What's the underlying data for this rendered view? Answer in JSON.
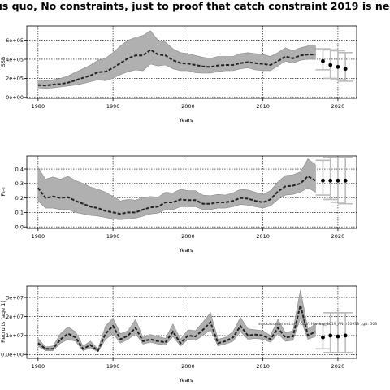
{
  "title": "tus quo, No constraints, just to proof that catch constraint 2019 is nee",
  "watermark": "stockassessment.org, Conf: Herring_2019_AN, r10938 , git: 503",
  "colors": {
    "band": "#b0b0b0",
    "line": "#222222",
    "grid": "#000000",
    "error_bar": "#bbbbbb",
    "point": "#000000"
  },
  "chart_data": [
    {
      "type": "area",
      "panel": "ssb",
      "xlabel": "Years",
      "ylabel": "SSB",
      "xlim": [
        1978.5,
        2022.5
      ],
      "ylim": [
        -10000,
        750000
      ],
      "xticks": [
        1980,
        1990,
        2000,
        2010,
        2020
      ],
      "yticks": [
        0,
        200000,
        400000,
        600000
      ],
      "ytick_labels": [
        "0e+00",
        "2e+05",
        "4e+05",
        "6e+05"
      ],
      "grid": true,
      "x": [
        1980,
        1981,
        1982,
        1983,
        1984,
        1985,
        1986,
        1987,
        1988,
        1989,
        1990,
        1991,
        1992,
        1993,
        1994,
        1995,
        1996,
        1997,
        1998,
        1999,
        2000,
        2001,
        2002,
        2003,
        2004,
        2005,
        2006,
        2007,
        2008,
        2009,
        2010,
        2011,
        2012,
        2013,
        2014,
        2015,
        2016,
        2017
      ],
      "estimate": [
        130000,
        125000,
        135000,
        140000,
        155000,
        180000,
        205000,
        230000,
        265000,
        270000,
        310000,
        360000,
        410000,
        440000,
        440000,
        500000,
        450000,
        440000,
        390000,
        360000,
        355000,
        340000,
        325000,
        320000,
        335000,
        340000,
        340000,
        360000,
        370000,
        360000,
        350000,
        340000,
        380000,
        430000,
        410000,
        440000,
        450000,
        450000
      ],
      "lower": [
        100000,
        95000,
        100000,
        110000,
        120000,
        130000,
        145000,
        165000,
        185000,
        175000,
        200000,
        240000,
        270000,
        290000,
        280000,
        350000,
        330000,
        340000,
        300000,
        280000,
        280000,
        260000,
        255000,
        255000,
        270000,
        280000,
        280000,
        300000,
        310000,
        290000,
        280000,
        280000,
        330000,
        380000,
        360000,
        390000,
        400000,
        400000
      ],
      "upper": [
        170000,
        175000,
        185000,
        200000,
        225000,
        265000,
        300000,
        340000,
        390000,
        410000,
        470000,
        540000,
        600000,
        630000,
        650000,
        700000,
        600000,
        580000,
        510000,
        470000,
        460000,
        440000,
        420000,
        410000,
        430000,
        430000,
        430000,
        460000,
        470000,
        460000,
        450000,
        430000,
        470000,
        520000,
        490000,
        520000,
        540000,
        540000
      ],
      "forecast": [
        {
          "x": 2018,
          "value": 380000,
          "lower": 290000,
          "upper": 510000
        },
        {
          "x": 2019,
          "value": 340000,
          "lower": 200000,
          "upper": 500000
        },
        {
          "x": 2020,
          "value": 320000,
          "lower": 185000,
          "upper": 490000
        },
        {
          "x": 2021,
          "value": 300000,
          "lower": 170000,
          "upper": 470000
        }
      ]
    },
    {
      "type": "area",
      "panel": "fbar",
      "xlabel": "Years",
      "ylabel": "F₃‐₆",
      "xlim": [
        1978.5,
        2022.5
      ],
      "ylim": [
        -0.01,
        0.49
      ],
      "xticks": [
        1980,
        1990,
        2000,
        2010,
        2020
      ],
      "yticks": [
        0,
        0.1,
        0.2,
        0.3,
        0.4
      ],
      "ytick_labels": [
        "0.0",
        "0.1",
        "0.2",
        "0.3",
        "0.4"
      ],
      "grid": true,
      "x": [
        1980,
        1981,
        1982,
        1983,
        1984,
        1985,
        1986,
        1987,
        1988,
        1989,
        1990,
        1991,
        1992,
        1993,
        1994,
        1995,
        1996,
        1997,
        1998,
        1999,
        2000,
        2001,
        2002,
        2003,
        2004,
        2005,
        2006,
        2007,
        2008,
        2009,
        2010,
        2011,
        2012,
        2013,
        2014,
        2015,
        2016,
        2017
      ],
      "estimate": [
        0.27,
        0.2,
        0.21,
        0.2,
        0.205,
        0.18,
        0.16,
        0.14,
        0.13,
        0.11,
        0.1,
        0.09,
        0.1,
        0.1,
        0.12,
        0.135,
        0.14,
        0.17,
        0.17,
        0.19,
        0.185,
        0.185,
        0.16,
        0.16,
        0.17,
        0.17,
        0.18,
        0.2,
        0.195,
        0.18,
        0.17,
        0.19,
        0.245,
        0.28,
        0.285,
        0.3,
        0.35,
        0.32
      ],
      "lower": [
        0.18,
        0.13,
        0.13,
        0.12,
        0.12,
        0.1,
        0.09,
        0.08,
        0.075,
        0.065,
        0.055,
        0.05,
        0.055,
        0.06,
        0.075,
        0.09,
        0.095,
        0.12,
        0.12,
        0.14,
        0.14,
        0.14,
        0.12,
        0.12,
        0.13,
        0.13,
        0.14,
        0.155,
        0.15,
        0.14,
        0.13,
        0.145,
        0.19,
        0.22,
        0.225,
        0.24,
        0.27,
        0.24
      ],
      "upper": [
        0.41,
        0.33,
        0.345,
        0.33,
        0.35,
        0.32,
        0.3,
        0.275,
        0.26,
        0.24,
        0.21,
        0.18,
        0.19,
        0.185,
        0.2,
        0.21,
        0.205,
        0.24,
        0.235,
        0.26,
        0.25,
        0.25,
        0.22,
        0.215,
        0.225,
        0.22,
        0.235,
        0.26,
        0.255,
        0.24,
        0.225,
        0.25,
        0.31,
        0.355,
        0.36,
        0.38,
        0.47,
        0.43
      ],
      "forecast": [
        {
          "x": 2018,
          "value": 0.32,
          "lower": 0.22,
          "upper": 0.46
        },
        {
          "x": 2019,
          "value": 0.32,
          "lower": 0.19,
          "upper": 0.48
        },
        {
          "x": 2020,
          "value": 0.32,
          "lower": 0.17,
          "upper": 0.48
        },
        {
          "x": 2021,
          "value": 0.32,
          "lower": 0.16,
          "upper": 0.48
        }
      ]
    },
    {
      "type": "area",
      "panel": "recruits",
      "xlabel": "Years",
      "ylabel": "Recruits (age 1)",
      "xlim": [
        1978.5,
        2022.5
      ],
      "ylim": [
        -2000000,
        36000000
      ],
      "xticks": [
        1980,
        1990,
        2000,
        2010,
        2020
      ],
      "yticks": [
        0,
        10000000,
        20000000,
        30000000
      ],
      "ytick_labels": [
        "0.0e+00",
        "1e+07",
        "2e+07",
        "3e+07"
      ],
      "grid": true,
      "x": [
        1980,
        1981,
        1982,
        1983,
        1984,
        1985,
        1986,
        1987,
        1988,
        1989,
        1990,
        1991,
        1992,
        1993,
        1994,
        1995,
        1996,
        1997,
        1998,
        1999,
        2000,
        2001,
        2002,
        2003,
        2004,
        2005,
        2006,
        2007,
        2008,
        2009,
        2010,
        2011,
        2012,
        2013,
        2014,
        2015,
        2016,
        2017
      ],
      "estimate": [
        6000000,
        3000000,
        3000000,
        8000000,
        11000000,
        9000000,
        3000000,
        5000000,
        2000000,
        11000000,
        15000000,
        8000000,
        10000000,
        14000000,
        7000000,
        8000000,
        7000000,
        6500000,
        12000000,
        6000000,
        10000000,
        9500000,
        13000000,
        17000000,
        6000000,
        7000000,
        9000000,
        15000000,
        10000000,
        10500000,
        10000000,
        8000000,
        14000000,
        9000000,
        9500000,
        26000000,
        10000000,
        12000000
      ],
      "lower": [
        4500000,
        2000000,
        2000000,
        6000000,
        8000000,
        7000000,
        2000000,
        3500000,
        1500000,
        8000000,
        11000000,
        6000000,
        8000000,
        11000000,
        5500000,
        6500000,
        5500000,
        5000000,
        9500000,
        4500000,
        8000000,
        7500000,
        10000000,
        13000000,
        4500000,
        5500000,
        7000000,
        12000000,
        8000000,
        8500000,
        8000000,
        6500000,
        11000000,
        7000000,
        7500000,
        19000000,
        8000000,
        9500000
      ],
      "upper": [
        8500000,
        4000000,
        4500000,
        11000000,
        14500000,
        12000000,
        4500000,
        7000000,
        3000000,
        15000000,
        19000000,
        11000000,
        12500000,
        18500000,
        9000000,
        10500000,
        9500000,
        8500000,
        16000000,
        8000000,
        13000000,
        12500000,
        17000000,
        22000000,
        8000000,
        9000000,
        12000000,
        19500000,
        13500000,
        13000000,
        12500000,
        10000000,
        18500000,
        11500000,
        12500000,
        34000000,
        13500000,
        16000000
      ],
      "forecast": [
        {
          "x": 2018,
          "value": 9000000,
          "lower": 3000000,
          "upper": 16000000
        },
        {
          "x": 2019,
          "value": 10000000,
          "lower": 1000000,
          "upper": 22000000
        },
        {
          "x": 2020,
          "value": 9500000,
          "lower": 1000000,
          "upper": 22000000
        },
        {
          "x": 2021,
          "value": 10000000,
          "lower": 1000000,
          "upper": 22000000
        }
      ]
    }
  ]
}
